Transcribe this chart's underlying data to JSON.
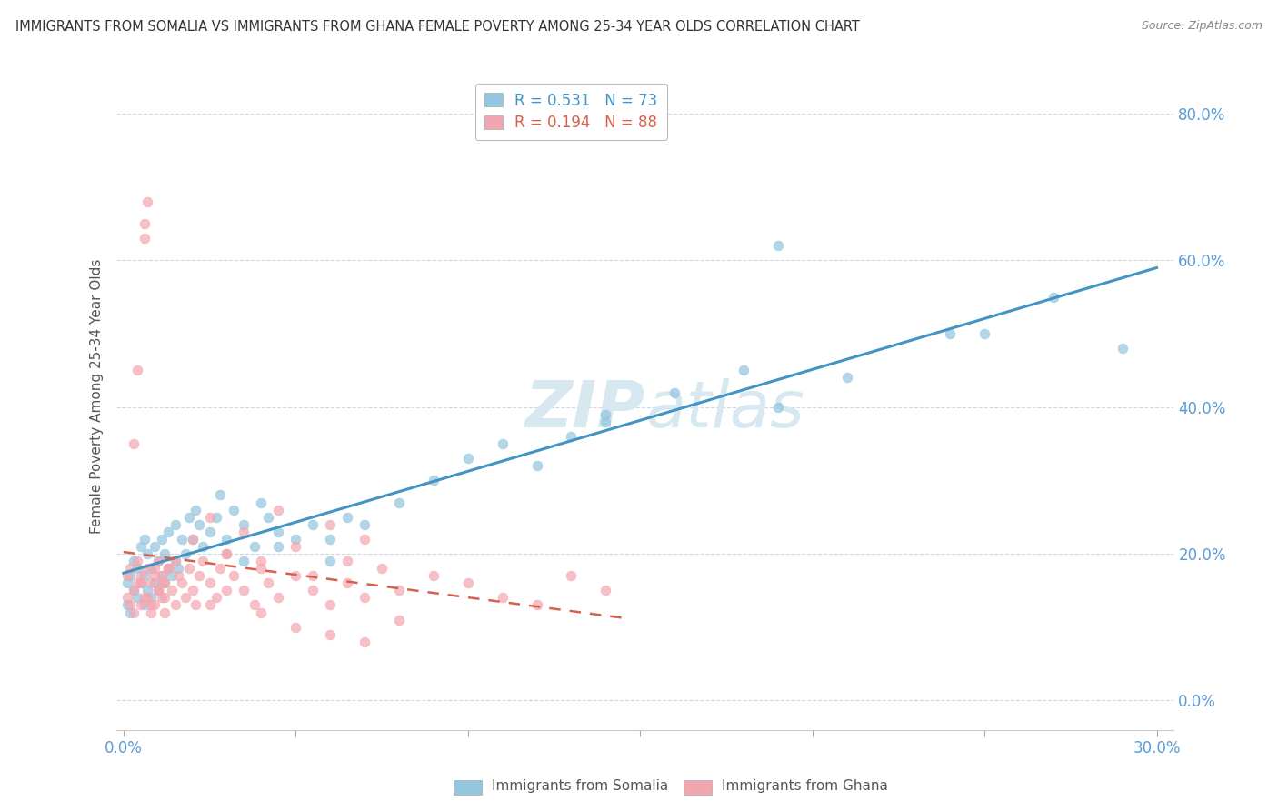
{
  "title": "IMMIGRANTS FROM SOMALIA VS IMMIGRANTS FROM GHANA FEMALE POVERTY AMONG 25-34 YEAR OLDS CORRELATION CHART",
  "source": "Source: ZipAtlas.com",
  "xlabel_somalia": "Immigrants from Somalia",
  "xlabel_ghana": "Immigrants from Ghana",
  "ylabel": "Female Poverty Among 25-34 Year Olds",
  "somalia_R": 0.531,
  "somalia_N": 73,
  "ghana_R": 0.194,
  "ghana_N": 88,
  "xlim": [
    -0.002,
    0.305
  ],
  "ylim": [
    -0.04,
    0.87
  ],
  "yticks": [
    0.0,
    0.2,
    0.4,
    0.6,
    0.8
  ],
  "ytick_labels": [
    "0.0%",
    "20.0%",
    "40.0%",
    "60.0%",
    "80.0%"
  ],
  "xticks": [
    0.0,
    0.05,
    0.1,
    0.15,
    0.2,
    0.25,
    0.3
  ],
  "xtick_labels_show": [
    "0.0%",
    "",
    "",
    "",
    "",
    "",
    "30.0%"
  ],
  "color_somalia": "#92c5de",
  "color_ghana": "#f4a6b0",
  "color_somalia_line": "#4393c3",
  "color_ghana_line": "#d6604d",
  "color_tick": "#5b9bd5",
  "watermark_color": "#d8e8f0",
  "somalia_x": [
    0.001,
    0.001,
    0.002,
    0.002,
    0.003,
    0.003,
    0.004,
    0.004,
    0.005,
    0.005,
    0.006,
    0.006,
    0.006,
    0.007,
    0.007,
    0.008,
    0.008,
    0.009,
    0.009,
    0.01,
    0.01,
    0.011,
    0.011,
    0.012,
    0.012,
    0.013,
    0.013,
    0.014,
    0.015,
    0.015,
    0.016,
    0.017,
    0.018,
    0.019,
    0.02,
    0.021,
    0.022,
    0.023,
    0.025,
    0.027,
    0.028,
    0.03,
    0.032,
    0.035,
    0.038,
    0.04,
    0.042,
    0.045,
    0.05,
    0.055,
    0.06,
    0.065,
    0.07,
    0.08,
    0.09,
    0.1,
    0.11,
    0.12,
    0.13,
    0.14,
    0.16,
    0.18,
    0.19,
    0.21,
    0.24,
    0.27,
    0.29,
    0.035,
    0.045,
    0.19,
    0.25,
    0.14,
    0.06
  ],
  "somalia_y": [
    0.13,
    0.16,
    0.12,
    0.17,
    0.15,
    0.19,
    0.14,
    0.18,
    0.16,
    0.21,
    0.13,
    0.17,
    0.22,
    0.15,
    0.2,
    0.14,
    0.18,
    0.16,
    0.21,
    0.15,
    0.19,
    0.17,
    0.22,
    0.16,
    0.2,
    0.18,
    0.23,
    0.17,
    0.19,
    0.24,
    0.18,
    0.22,
    0.2,
    0.25,
    0.22,
    0.26,
    0.24,
    0.21,
    0.23,
    0.25,
    0.28,
    0.22,
    0.26,
    0.24,
    0.21,
    0.27,
    0.25,
    0.23,
    0.22,
    0.24,
    0.22,
    0.25,
    0.24,
    0.27,
    0.3,
    0.33,
    0.35,
    0.32,
    0.36,
    0.38,
    0.42,
    0.45,
    0.4,
    0.44,
    0.5,
    0.55,
    0.48,
    0.19,
    0.21,
    0.62,
    0.5,
    0.39,
    0.19
  ],
  "ghana_x": [
    0.001,
    0.001,
    0.002,
    0.002,
    0.003,
    0.003,
    0.004,
    0.004,
    0.005,
    0.005,
    0.006,
    0.006,
    0.007,
    0.007,
    0.008,
    0.008,
    0.009,
    0.009,
    0.01,
    0.01,
    0.011,
    0.011,
    0.012,
    0.012,
    0.013,
    0.014,
    0.015,
    0.016,
    0.017,
    0.018,
    0.019,
    0.02,
    0.021,
    0.022,
    0.023,
    0.025,
    0.027,
    0.028,
    0.03,
    0.032,
    0.035,
    0.038,
    0.04,
    0.042,
    0.045,
    0.05,
    0.055,
    0.06,
    0.065,
    0.07,
    0.075,
    0.08,
    0.09,
    0.1,
    0.11,
    0.12,
    0.13,
    0.14,
    0.005,
    0.006,
    0.007,
    0.008,
    0.009,
    0.01,
    0.011,
    0.012,
    0.013,
    0.003,
    0.004,
    0.015,
    0.02,
    0.025,
    0.03,
    0.035,
    0.04,
    0.045,
    0.05,
    0.055,
    0.06,
    0.065,
    0.07,
    0.025,
    0.03,
    0.04,
    0.05,
    0.06,
    0.07,
    0.08
  ],
  "ghana_y": [
    0.14,
    0.17,
    0.13,
    0.18,
    0.15,
    0.12,
    0.16,
    0.19,
    0.13,
    0.17,
    0.65,
    0.63,
    0.14,
    0.68,
    0.12,
    0.16,
    0.18,
    0.13,
    0.15,
    0.19,
    0.14,
    0.17,
    0.16,
    0.12,
    0.18,
    0.15,
    0.13,
    0.17,
    0.16,
    0.14,
    0.18,
    0.15,
    0.13,
    0.17,
    0.19,
    0.16,
    0.14,
    0.18,
    0.2,
    0.17,
    0.15,
    0.13,
    0.19,
    0.16,
    0.14,
    0.17,
    0.15,
    0.13,
    0.16,
    0.14,
    0.18,
    0.15,
    0.17,
    0.16,
    0.14,
    0.13,
    0.17,
    0.15,
    0.16,
    0.14,
    0.18,
    0.13,
    0.17,
    0.15,
    0.16,
    0.14,
    0.18,
    0.35,
    0.45,
    0.19,
    0.22,
    0.25,
    0.2,
    0.23,
    0.18,
    0.26,
    0.21,
    0.17,
    0.24,
    0.19,
    0.22,
    0.13,
    0.15,
    0.12,
    0.1,
    0.09,
    0.08,
    0.11
  ]
}
